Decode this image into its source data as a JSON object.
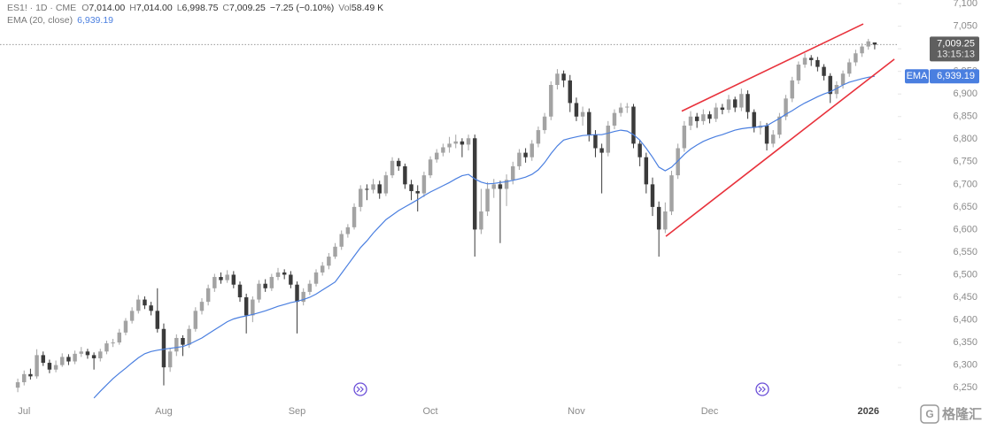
{
  "header": {
    "symbol": "ES1! · 1D · CME",
    "open_label": "O",
    "open": "7,014.00",
    "high_label": "H",
    "high": "7,014.00",
    "low_label": "L",
    "low": "6,998.75",
    "close_label": "C",
    "close": "7,009.25",
    "change": "−7.25 (−0.10%)",
    "volume_label": "Vol",
    "volume": "58.49 K"
  },
  "watermark": "格隆汇",
  "chart_data": {
    "type": "candlestick",
    "categories": [
      null,
      "Jul",
      null,
      null,
      null,
      null,
      null,
      null,
      null,
      null,
      null,
      null,
      null,
      null,
      null,
      null,
      null,
      null,
      null,
      null,
      null,
      null,
      null,
      "Aug",
      null,
      null,
      null,
      null,
      null,
      null,
      null,
      null,
      null,
      null,
      null,
      null,
      null,
      null,
      null,
      null,
      null,
      null,
      null,
      null,
      "Sep",
      null,
      null,
      null,
      null,
      null,
      null,
      null,
      null,
      null,
      null,
      null,
      null,
      null,
      null,
      null,
      null,
      null,
      null,
      null,
      null,
      "Oct",
      null,
      null,
      null,
      null,
      null,
      null,
      null,
      null,
      null,
      null,
      null,
      null,
      null,
      null,
      null,
      null,
      null,
      null,
      null,
      null,
      null,
      null,
      "Nov",
      null,
      null,
      null,
      null,
      null,
      null,
      null,
      null,
      null,
      null,
      null,
      null,
      null,
      null,
      null,
      null,
      null,
      null,
      null,
      null,
      "Dec",
      null,
      null,
      null,
      null,
      null,
      null,
      null,
      null,
      null,
      null,
      null,
      null,
      null,
      null,
      null,
      null,
      null,
      null,
      null,
      null,
      null,
      null,
      null,
      null,
      "2026",
      null,
      null,
      null,
      null,
      null
    ],
    "ohlc": [
      [
        6250,
        6270,
        6240,
        6262
      ],
      [
        6262,
        6288,
        6255,
        6280
      ],
      [
        6280,
        6292,
        6268,
        6275
      ],
      [
        6275,
        6335,
        6270,
        6322
      ],
      [
        6322,
        6330,
        6298,
        6305
      ],
      [
        6305,
        6312,
        6282,
        6290
      ],
      [
        6290,
        6310,
        6284,
        6300
      ],
      [
        6300,
        6326,
        6296,
        6318
      ],
      [
        6318,
        6324,
        6300,
        6308
      ],
      [
        6308,
        6332,
        6302,
        6325
      ],
      [
        6325,
        6340,
        6318,
        6330
      ],
      [
        6330,
        6336,
        6314,
        6322
      ],
      [
        6322,
        6328,
        6290,
        6315
      ],
      [
        6315,
        6336,
        6308,
        6330
      ],
      [
        6330,
        6354,
        6324,
        6348
      ],
      [
        6348,
        6358,
        6340,
        6350
      ],
      [
        6350,
        6380,
        6345,
        6372
      ],
      [
        6372,
        6404,
        6366,
        6398
      ],
      [
        6398,
        6428,
        6392,
        6420
      ],
      [
        6420,
        6455,
        6414,
        6445
      ],
      [
        6445,
        6452,
        6424,
        6432
      ],
      [
        6432,
        6440,
        6410,
        6420
      ],
      [
        6420,
        6470,
        6372,
        6380
      ],
      [
        6380,
        6392,
        6255,
        6295
      ],
      [
        6295,
        6338,
        6285,
        6330
      ],
      [
        6330,
        6368,
        6320,
        6360
      ],
      [
        6360,
        6366,
        6320,
        6345
      ],
      [
        6345,
        6388,
        6338,
        6380
      ],
      [
        6380,
        6428,
        6374,
        6420
      ],
      [
        6420,
        6448,
        6412,
        6440
      ],
      [
        6440,
        6478,
        6432,
        6470
      ],
      [
        6470,
        6502,
        6462,
        6495
      ],
      [
        6495,
        6505,
        6480,
        6488
      ],
      [
        6488,
        6510,
        6482,
        6500
      ],
      [
        6500,
        6508,
        6470,
        6478
      ],
      [
        6478,
        6485,
        6440,
        6450
      ],
      [
        6450,
        6458,
        6370,
        6410
      ],
      [
        6410,
        6452,
        6395,
        6445
      ],
      [
        6445,
        6488,
        6438,
        6480
      ],
      [
        6480,
        6490,
        6462,
        6470
      ],
      [
        6470,
        6502,
        6464,
        6495
      ],
      [
        6495,
        6515,
        6488,
        6505
      ],
      [
        6505,
        6512,
        6490,
        6500
      ],
      [
        6500,
        6508,
        6470,
        6478
      ],
      [
        6478,
        6485,
        6370,
        6440
      ],
      [
        6440,
        6470,
        6432,
        6462
      ],
      [
        6462,
        6488,
        6455,
        6480
      ],
      [
        6480,
        6512,
        6474,
        6505
      ],
      [
        6505,
        6528,
        6498,
        6520
      ],
      [
        6520,
        6548,
        6512,
        6540
      ],
      [
        6540,
        6570,
        6535,
        6562
      ],
      [
        6562,
        6598,
        6555,
        6590
      ],
      [
        6590,
        6612,
        6582,
        6605
      ],
      [
        6605,
        6658,
        6600,
        6650
      ],
      [
        6650,
        6698,
        6640,
        6690
      ],
      [
        6690,
        6700,
        6665,
        6688
      ],
      [
        6688,
        6712,
        6680,
        6700
      ],
      [
        6700,
        6708,
        6668,
        6680
      ],
      [
        6680,
        6728,
        6674,
        6720
      ],
      [
        6720,
        6760,
        6714,
        6752
      ],
      [
        6752,
        6758,
        6730,
        6740
      ],
      [
        6740,
        6746,
        6690,
        6700
      ],
      [
        6700,
        6710,
        6665,
        6685
      ],
      [
        6685,
        6698,
        6640,
        6680
      ],
      [
        6680,
        6728,
        6672,
        6720
      ],
      [
        6720,
        6762,
        6714,
        6755
      ],
      [
        6755,
        6778,
        6748,
        6770
      ],
      [
        6770,
        6790,
        6762,
        6782
      ],
      [
        6782,
        6805,
        6770,
        6790
      ],
      [
        6790,
        6810,
        6780,
        6795
      ],
      [
        6795,
        6802,
        6760,
        6788
      ],
      [
        6788,
        6810,
        6775,
        6802
      ],
      [
        6802,
        6810,
        6540,
        6600
      ],
      [
        6600,
        6690,
        6590,
        6640
      ],
      [
        6640,
        6705,
        6630,
        6690
      ],
      [
        6690,
        6712,
        6670,
        6700
      ],
      [
        6700,
        6708,
        6570,
        6690
      ],
      [
        6690,
        6722,
        6652,
        6710
      ],
      [
        6710,
        6750,
        6700,
        6740
      ],
      [
        6740,
        6778,
        6732,
        6770
      ],
      [
        6770,
        6780,
        6748,
        6760
      ],
      [
        6760,
        6798,
        6752,
        6790
      ],
      [
        6790,
        6828,
        6782,
        6820
      ],
      [
        6820,
        6858,
        6812,
        6850
      ],
      [
        6850,
        6928,
        6842,
        6920
      ],
      [
        6920,
        6955,
        6910,
        6945
      ],
      [
        6945,
        6952,
        6915,
        6930
      ],
      [
        6930,
        6942,
        6860,
        6880
      ],
      [
        6880,
        6892,
        6840,
        6850
      ],
      [
        6850,
        6872,
        6830,
        6860
      ],
      [
        6860,
        6868,
        6795,
        6810
      ],
      [
        6810,
        6820,
        6760,
        6780
      ],
      [
        6780,
        6790,
        6680,
        6770
      ],
      [
        6770,
        6840,
        6762,
        6830
      ],
      [
        6830,
        6866,
        6822,
        6858
      ],
      [
        6858,
        6880,
        6850,
        6870
      ],
      [
        6870,
        6880,
        6858,
        6872
      ],
      [
        6872,
        6878,
        6780,
        6790
      ],
      [
        6790,
        6798,
        6740,
        6760
      ],
      [
        6760,
        6770,
        6680,
        6700
      ],
      [
        6700,
        6715,
        6630,
        6650
      ],
      [
        6650,
        6662,
        6540,
        6600
      ],
      [
        6600,
        6660,
        6592,
        6640
      ],
      [
        6640,
        6730,
        6632,
        6720
      ],
      [
        6720,
        6790,
        6712,
        6780
      ],
      [
        6780,
        6840,
        6772,
        6830
      ],
      [
        6830,
        6862,
        6820,
        6850
      ],
      [
        6850,
        6858,
        6825,
        6840
      ],
      [
        6840,
        6866,
        6832,
        6855
      ],
      [
        6855,
        6862,
        6835,
        6845
      ],
      [
        6845,
        6880,
        6838,
        6870
      ],
      [
        6870,
        6878,
        6855,
        6865
      ],
      [
        6865,
        6898,
        6858,
        6888
      ],
      [
        6888,
        6894,
        6860,
        6870
      ],
      [
        6870,
        6912,
        6862,
        6900
      ],
      [
        6900,
        6908,
        6845,
        6860
      ],
      [
        6860,
        6866,
        6815,
        6825
      ],
      [
        6825,
        6840,
        6810,
        6830
      ],
      [
        6830,
        6836,
        6775,
        6790
      ],
      [
        6790,
        6820,
        6782,
        6810
      ],
      [
        6810,
        6858,
        6802,
        6850
      ],
      [
        6850,
        6898,
        6842,
        6890
      ],
      [
        6890,
        6938,
        6882,
        6930
      ],
      [
        6930,
        6972,
        6922,
        6965
      ],
      [
        6965,
        6990,
        6958,
        6980
      ],
      [
        6980,
        6986,
        6962,
        6975
      ],
      [
        6975,
        6982,
        6950,
        6960
      ],
      [
        6960,
        6966,
        6930,
        6940
      ],
      [
        6940,
        6946,
        6880,
        6900
      ],
      [
        6900,
        6928,
        6890,
        6920
      ],
      [
        6920,
        6952,
        6912,
        6945
      ],
      [
        6945,
        6978,
        6938,
        6970
      ],
      [
        6970,
        6998,
        6962,
        6990
      ],
      [
        6990,
        7012,
        6982,
        7005
      ],
      [
        7005,
        7022,
        6998,
        7016.5
      ],
      [
        7014,
        7014,
        6998.75,
        7009.25
      ]
    ],
    "up_color": "#a3a3a3",
    "down_color": "#3b3b3b",
    "indicators": [
      {
        "name": "EMA (20, close)",
        "tag": "EMA",
        "value_label": "6,939.19",
        "color": "#4a7fe0",
        "values": [
          null,
          null,
          null,
          null,
          null,
          null,
          null,
          null,
          null,
          null,
          null,
          null,
          6227,
          6242,
          6256,
          6270,
          6282,
          6293,
          6305,
          6316,
          6325,
          6330,
          6333,
          6335,
          6337,
          6339,
          6341,
          6346,
          6353,
          6360,
          6369,
          6378,
          6387,
          6396,
          6402,
          6406,
          6409,
          6412,
          6416,
          6420,
          6425,
          6430,
          6434,
          6438,
          6441,
          6445,
          6450,
          6457,
          6466,
          6475,
          6484,
          6503,
          6522,
          6541,
          6560,
          6575,
          6592,
          6607,
          6622,
          6632,
          6642,
          6650,
          6658,
          6666,
          6675,
          6683,
          6690,
          6697,
          6704,
          6712,
          6719,
          6722,
          6712,
          6705,
          6701,
          6702,
          6704,
          6706,
          6709,
          6712,
          6716,
          6722,
          6732,
          6748,
          6768,
          6785,
          6798,
          6802,
          6805,
          6808,
          6809,
          6810,
          6810,
          6813,
          6817,
          6820,
          6818,
          6810,
          6798,
          6780,
          6760,
          6738,
          6730,
          6738,
          6752,
          6766,
          6778,
          6787,
          6795,
          6801,
          6806,
          6810,
          6815,
          6820,
          6823,
          6825,
          6826,
          6828,
          6830,
          6838,
          6846,
          6855,
          6863,
          6872,
          6880,
          6887,
          6894,
          6900,
          6905,
          6912,
          6920,
          6926,
          6930,
          6934,
          6937,
          6939.19
        ]
      }
    ],
    "trend_lines": [
      {
        "x": [
          104.6,
          133.2
        ],
        "y": [
          6862,
          7055
        ],
        "color": "#e8323c"
      },
      {
        "x": [
          102.1,
          138.1
        ],
        "y": [
          6585,
          6977
        ],
        "color": "#e8323c"
      }
    ],
    "last_price_label": "7,009.25",
    "countdown": "13:15:13",
    "xlim": [
      -2.8,
      138.5
    ],
    "ylim": [
      6217,
      7108
    ],
    "yticks": [
      {
        "value": 6250,
        "label": "6,250"
      },
      {
        "value": 6300,
        "label": "6,300"
      },
      {
        "value": 6350,
        "label": "6,350"
      },
      {
        "value": 6400,
        "label": "6,400"
      },
      {
        "value": 6450,
        "label": "6,450"
      },
      {
        "value": 6500,
        "label": "6,500"
      },
      {
        "value": 6550,
        "label": "6,550"
      },
      {
        "value": 6600,
        "label": "6,600"
      },
      {
        "value": 6650,
        "label": "6,650"
      },
      {
        "value": 6700,
        "label": "6,700"
      },
      {
        "value": 6750,
        "label": "6,750"
      },
      {
        "value": 6800,
        "label": "6,800"
      },
      {
        "value": 6850,
        "label": "6,850"
      },
      {
        "value": 6900,
        "label": "6,900"
      },
      {
        "value": 6950,
        "label": "6,950"
      },
      {
        "value": 7000,
        "label": "7,000"
      },
      {
        "value": 7050,
        "label": "7,050"
      },
      {
        "value": 7100,
        "label": "7,100"
      }
    ],
    "grid": false
  }
}
